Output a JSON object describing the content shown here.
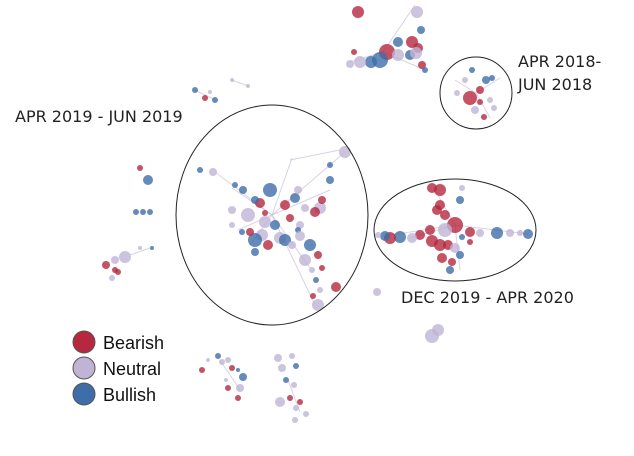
{
  "clusters": [
    {
      "id": "c1",
      "label_lines": [
        "APR 2018-",
        "JUN 2018"
      ]
    },
    {
      "id": "c2",
      "label_lines": [
        "APR 2019 - JUN 2019"
      ]
    },
    {
      "id": "c3",
      "label_lines": [
        "DEC 2019 - APR 2020"
      ]
    }
  ],
  "legend": [
    {
      "label": "Bearish",
      "color": "#b5283f"
    },
    {
      "label": "Neutral",
      "color": "#bfb4d6"
    },
    {
      "label": "Bullish",
      "color": "#3d6ea8"
    }
  ],
  "edge_color": "#c9bfd9"
}
